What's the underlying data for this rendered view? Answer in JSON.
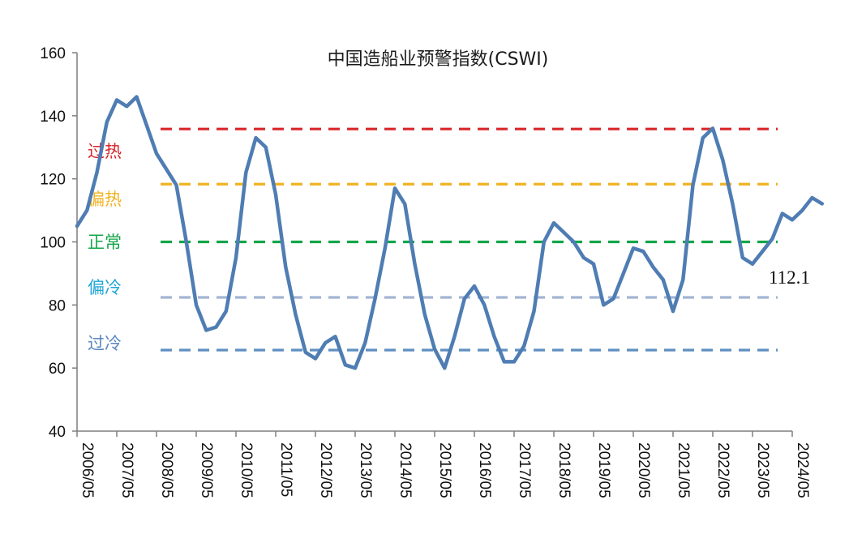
{
  "chart_data": {
    "type": "line",
    "title": "中国造船业预警指数(CSWI)",
    "xlabel": "",
    "ylabel": "",
    "ylim": [
      40,
      160
    ],
    "yticks": [
      40,
      60,
      80,
      100,
      120,
      140,
      160
    ],
    "xlim": [
      "2006/05",
      "2024/05"
    ],
    "xticks": [
      "2006/05",
      "2007/05",
      "2008/05",
      "2009/05",
      "2010/05",
      "2011/05",
      "2012/05",
      "2013/05",
      "2014/05",
      "2015/05",
      "2016/05",
      "2017/05",
      "2018/05",
      "2019/05",
      "2020/05",
      "2021/05",
      "2022/05",
      "2023/05",
      "2024/05"
    ],
    "grid": false,
    "legend": "none",
    "colors": {
      "series": "#4f7db3",
      "overheat": "#d9262a",
      "warm": "#f0b321",
      "normal": "#12a64a",
      "cool": "#a3b4d2",
      "overcool": "#5f8fc1"
    },
    "thresholds": [
      {
        "label": "过热",
        "value": 135.8,
        "color": "#d9262a"
      },
      {
        "label": "偏热",
        "value": 118.3,
        "color": "#f0b321"
      },
      {
        "label": "正常",
        "value": 100.0,
        "color": "#12a64a"
      },
      {
        "label": "偏冷",
        "value": 82.4,
        "color": "#1ea6d6"
      },
      {
        "label": "过冷",
        "value": 65.7,
        "color": "#5a86c0"
      }
    ],
    "threshold_colors_line": [
      "#d9262a",
      "#f0b321",
      "#12a64a",
      "#a3b4d2",
      "#5f8fc1"
    ],
    "threshold_range": [
      "2008/05",
      "2024/05"
    ],
    "annotation": {
      "text": "112.1",
      "x": "2024/05",
      "y": 112.1
    },
    "series": [
      {
        "values": [
          [
            "2006/05",
            105
          ],
          [
            "2006/08",
            110
          ],
          [
            "2006/11",
            122
          ],
          [
            "2007/02",
            138
          ],
          [
            "2007/05",
            145
          ],
          [
            "2007/08",
            143
          ],
          [
            "2007/11",
            146
          ],
          [
            "2008/02",
            137
          ],
          [
            "2008/05",
            128
          ],
          [
            "2008/08",
            123
          ],
          [
            "2008/11",
            118
          ],
          [
            "2009/02",
            100
          ],
          [
            "2009/05",
            80
          ],
          [
            "2009/08",
            72
          ],
          [
            "2009/11",
            73
          ],
          [
            "2010/02",
            78
          ],
          [
            "2010/05",
            95
          ],
          [
            "2010/08",
            122
          ],
          [
            "2010/11",
            133
          ],
          [
            "2011/02",
            130
          ],
          [
            "2011/05",
            115
          ],
          [
            "2011/08",
            92
          ],
          [
            "2011/11",
            77
          ],
          [
            "2012/02",
            65
          ],
          [
            "2012/05",
            63
          ],
          [
            "2012/08",
            68
          ],
          [
            "2012/11",
            70
          ],
          [
            "2013/02",
            61
          ],
          [
            "2013/05",
            60
          ],
          [
            "2013/08",
            68
          ],
          [
            "2013/11",
            82
          ],
          [
            "2014/02",
            98
          ],
          [
            "2014/05",
            117
          ],
          [
            "2014/08",
            112
          ],
          [
            "2014/11",
            93
          ],
          [
            "2015/02",
            77
          ],
          [
            "2015/05",
            66
          ],
          [
            "2015/08",
            60
          ],
          [
            "2015/11",
            70
          ],
          [
            "2016/02",
            82
          ],
          [
            "2016/05",
            86
          ],
          [
            "2016/08",
            80
          ],
          [
            "2016/11",
            70
          ],
          [
            "2017/02",
            62
          ],
          [
            "2017/05",
            62
          ],
          [
            "2017/08",
            67
          ],
          [
            "2017/11",
            78
          ],
          [
            "2018/02",
            100
          ],
          [
            "2018/05",
            106
          ],
          [
            "2018/08",
            103
          ],
          [
            "2018/11",
            100
          ],
          [
            "2019/02",
            95
          ],
          [
            "2019/05",
            93
          ],
          [
            "2019/08",
            80
          ],
          [
            "2019/11",
            82
          ],
          [
            "2020/02",
            90
          ],
          [
            "2020/05",
            98
          ],
          [
            "2020/08",
            97
          ],
          [
            "2020/11",
            92
          ],
          [
            "2021/02",
            88
          ],
          [
            "2021/05",
            78
          ],
          [
            "2021/08",
            88
          ],
          [
            "2021/11",
            118
          ],
          [
            "2022/02",
            133
          ],
          [
            "2022/05",
            136
          ],
          [
            "2022/08",
            126
          ],
          [
            "2022/11",
            112
          ],
          [
            "2023/02",
            95
          ],
          [
            "2023/05",
            93
          ],
          [
            "2023/08",
            97
          ],
          [
            "2023/11",
            101
          ],
          [
            "2024/02",
            109
          ],
          [
            "2024/05",
            107
          ],
          [
            "2024/08",
            110
          ],
          [
            "2024/11",
            114
          ],
          [
            "2025/02",
            112.1
          ]
        ]
      }
    ]
  }
}
